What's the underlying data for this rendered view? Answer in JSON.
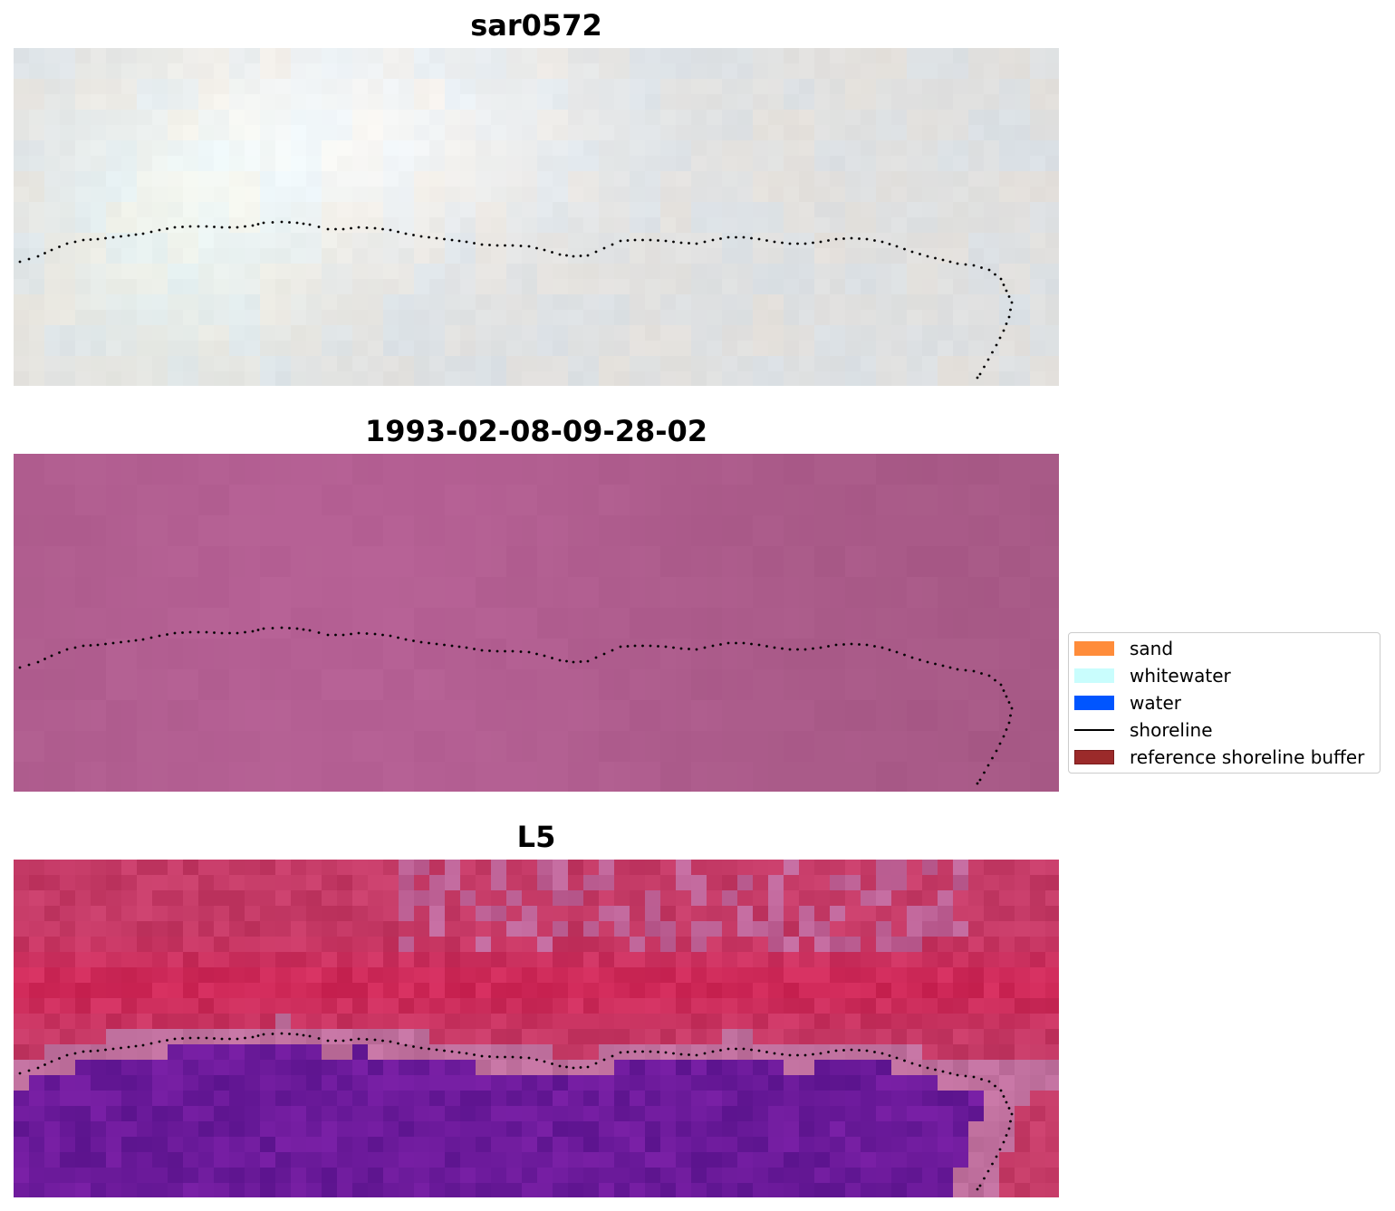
{
  "panels": [
    {
      "title": "sar0572",
      "style": "sar"
    },
    {
      "title": "1993-02-08-09-28-02",
      "style": "flat"
    },
    {
      "title": "L5",
      "style": "classified"
    }
  ],
  "colors": {
    "sar_base": "#dfe0e0",
    "flat_base": "#ad5c8c",
    "classified_land": "#c43a66",
    "classified_water": "#6b1a9a",
    "classified_edge": "#c0709e",
    "shoreline": "#000000"
  },
  "legend": {
    "items": [
      {
        "label": "sand",
        "color": "#ff8c3a",
        "kind": "patch"
      },
      {
        "label": "whitewater",
        "color": "#c9fdfd",
        "kind": "patch"
      },
      {
        "label": "water",
        "color": "#0055ff",
        "kind": "patch"
      },
      {
        "label": "shoreline",
        "color": "#000000",
        "kind": "line"
      },
      {
        "label": "reference shoreline buffer",
        "color": "#9b2a2a",
        "kind": "patch"
      }
    ]
  }
}
